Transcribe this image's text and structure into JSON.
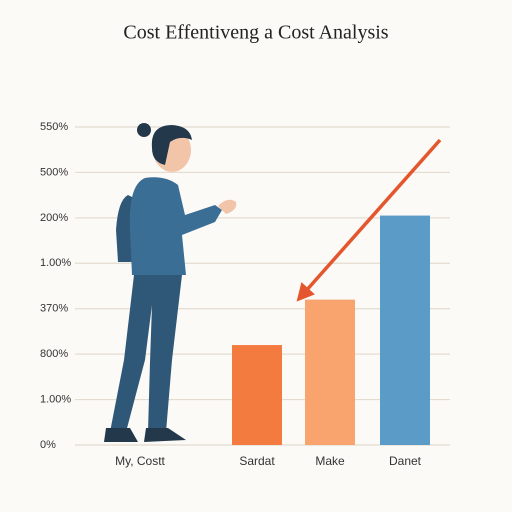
{
  "chart_data": {
    "type": "bar",
    "title": "Cost Effentiveng a Cost Analysis",
    "categories": [
      "My, Costt",
      "Sardat",
      "Make",
      "Danet"
    ],
    "values": [
      null,
      2.2,
      3.2,
      5.05
    ],
    "colors": [
      null,
      "#f47b3f",
      "#f9a36f",
      "#5b9bc7"
    ],
    "ylim": [
      0,
      7
    ],
    "yticks": [
      {
        "value": 7,
        "label": "550%"
      },
      {
        "value": 6,
        "label": "500%"
      },
      {
        "value": 5,
        "label": "200%"
      },
      {
        "value": 4,
        "label": "1.00%"
      },
      {
        "value": 3,
        "label": "370%"
      },
      {
        "value": 2,
        "label": "800%"
      },
      {
        "value": 1,
        "label": "1.00%"
      },
      {
        "value": 0,
        "label": "0%"
      }
    ],
    "grid": true
  }
}
